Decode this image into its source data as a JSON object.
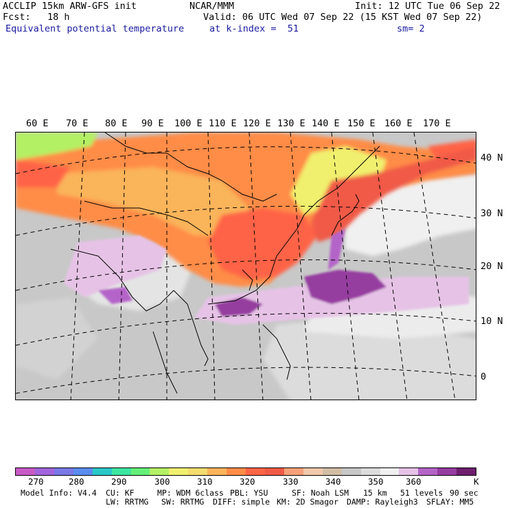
{
  "header": {
    "line1_left": "ACCLIP 15km ARW-GFS init",
    "line1_mid": "NCAR/MMM",
    "line1_right": "Init: 12 UTC Tue 06 Sep 22",
    "line2_left": "Fcst:   18 h",
    "line2_right": "Valid: 06 UTC Wed 07 Sep 22 (15 KST Wed 07 Sep 22)",
    "line3_left": "Equivalent potential temperature",
    "line3_mid": "at k-index =  51",
    "line3_right": "sm= 2"
  },
  "map": {
    "lon_labels": [
      "60 E",
      "70 E",
      "80 E",
      "90 E",
      "100 E",
      "110 E",
      "120 E",
      "130 E",
      "140 E",
      "150 E",
      "160 E",
      "170 E"
    ],
    "lat_labels": [
      "40 N",
      "30 N",
      "20 N",
      "10 N",
      "0"
    ]
  },
  "colorbar": {
    "colors": [
      "#c85ac8",
      "#a064dc",
      "#7878e6",
      "#5a8cf0",
      "#28c8c8",
      "#3ce6a0",
      "#64f078",
      "#b4f064",
      "#f0f06e",
      "#f5dc6e",
      "#fab45a",
      "#ff8c46",
      "#ff6446",
      "#f05a46",
      "#f5a078",
      "#f0c8aa",
      "#d2bea5",
      "#c8c8c8",
      "#dcdcdc",
      "#f0f0f0",
      "#e6c3e6",
      "#b464c8",
      "#963ca0",
      "#6e1e6e"
    ],
    "ticks": [
      "270",
      "280",
      "290",
      "300",
      "310",
      "320",
      "330",
      "340",
      "350",
      "360"
    ],
    "unit": "K"
  },
  "footer": {
    "line1": [
      "Model Info: V4.4",
      "CU: KF",
      "MP: WDM 6class",
      "PBL: YSU",
      "SF: Noah LSM",
      "15 km",
      "51 levels",
      "90 sec"
    ],
    "line2": [
      "LW: RRTMG",
      "SW: RRTMG",
      "DIFF: simple",
      "KM: 2D Smagor",
      "DAMP: Rayleigh3",
      "SFLAY: MM5"
    ]
  }
}
